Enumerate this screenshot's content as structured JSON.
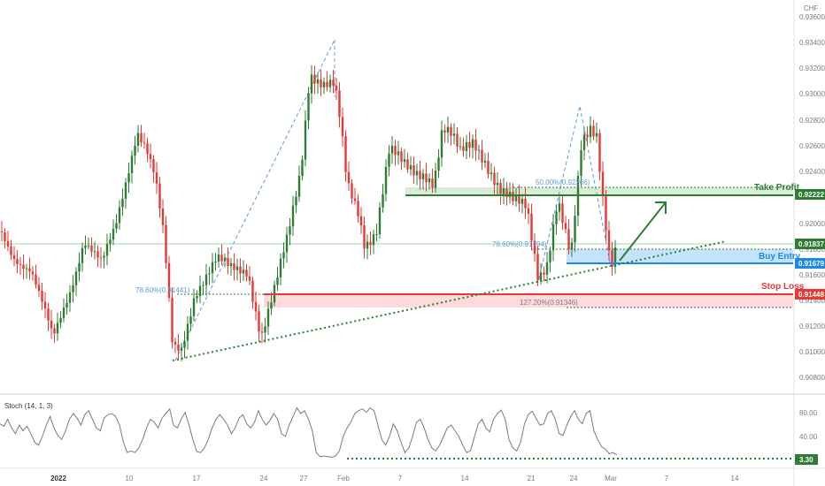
{
  "currency": "CHF",
  "chart_data": [
    {
      "type": "candlestick",
      "y_ticks": [
        "0.93600",
        "0.93400",
        "0.93200",
        "0.93000",
        "0.92800",
        "0.92600",
        "0.92400",
        "0.92200",
        "0.92000",
        "0.91800",
        "0.91600",
        "0.91400",
        "0.91200",
        "0.91000",
        "0.90800"
      ],
      "ylim": [
        0.9074,
        0.9363
      ],
      "x_ticks": [
        "2022",
        "10",
        "17",
        "24",
        "27",
        "Feb",
        "7",
        "14",
        "21",
        "24",
        "Mar",
        "7",
        "14"
      ],
      "levels": {
        "take_profit": {
          "label": "Take Profit",
          "value": "0.92222",
          "color": "#2e7d32"
        },
        "buy_entry": {
          "label": "Buy Entry",
          "value": "0.91679",
          "color": "#1e88e5"
        },
        "current": {
          "value": "0.91837",
          "color": "#2e7d32"
        },
        "stop_loss": {
          "label": "Stop Loss",
          "value": "0.91448",
          "color": "#e53935"
        }
      },
      "annotations": [
        {
          "text": "78.60%(0.91441)"
        },
        {
          "text": "78.60%(0.91794)"
        },
        {
          "text": "50.00%(0.92266)"
        },
        {
          "text": "127.20%(0.91346)"
        }
      ]
    },
    {
      "type": "line",
      "title": "Stoch (14, 1, 3)",
      "y_ticks": [
        "80.00",
        "40.00"
      ],
      "ylim": [
        0,
        100
      ],
      "level": "3.30",
      "values": [
        62,
        58,
        70,
        55,
        45,
        60,
        50,
        58,
        45,
        30,
        25,
        40,
        60,
        75,
        55,
        42,
        35,
        50,
        70,
        80,
        72,
        60,
        78,
        85,
        70,
        55,
        50,
        72,
        78,
        80,
        75,
        60,
        30,
        12,
        15,
        12,
        20,
        35,
        55,
        70,
        65,
        55,
        72,
        80,
        88,
        60,
        55,
        70,
        82,
        60,
        35,
        14,
        12,
        20,
        35,
        55,
        70,
        78,
        70,
        60,
        45,
        55,
        72,
        78,
        62,
        55,
        65,
        85,
        70,
        60,
        68,
        80,
        70,
        45,
        40,
        60,
        75,
        90,
        80,
        85,
        70,
        50,
        12,
        5,
        6,
        5,
        4,
        6,
        15,
        40,
        55,
        65,
        80,
        85,
        88,
        82,
        90,
        85,
        60,
        35,
        25,
        40,
        62,
        50,
        30,
        12,
        20,
        40,
        65,
        70,
        55,
        35,
        20,
        15,
        25,
        40,
        55,
        60,
        50,
        40,
        25,
        12,
        15,
        38,
        62,
        70,
        55,
        48,
        70,
        80,
        86,
        70,
        35,
        20,
        15,
        30,
        62,
        78,
        84,
        72,
        60,
        62,
        80,
        85,
        70,
        45,
        42,
        60,
        75,
        85,
        70,
        62,
        80,
        85,
        50,
        35,
        22,
        18,
        10,
        12,
        8
      ]
    }
  ]
}
